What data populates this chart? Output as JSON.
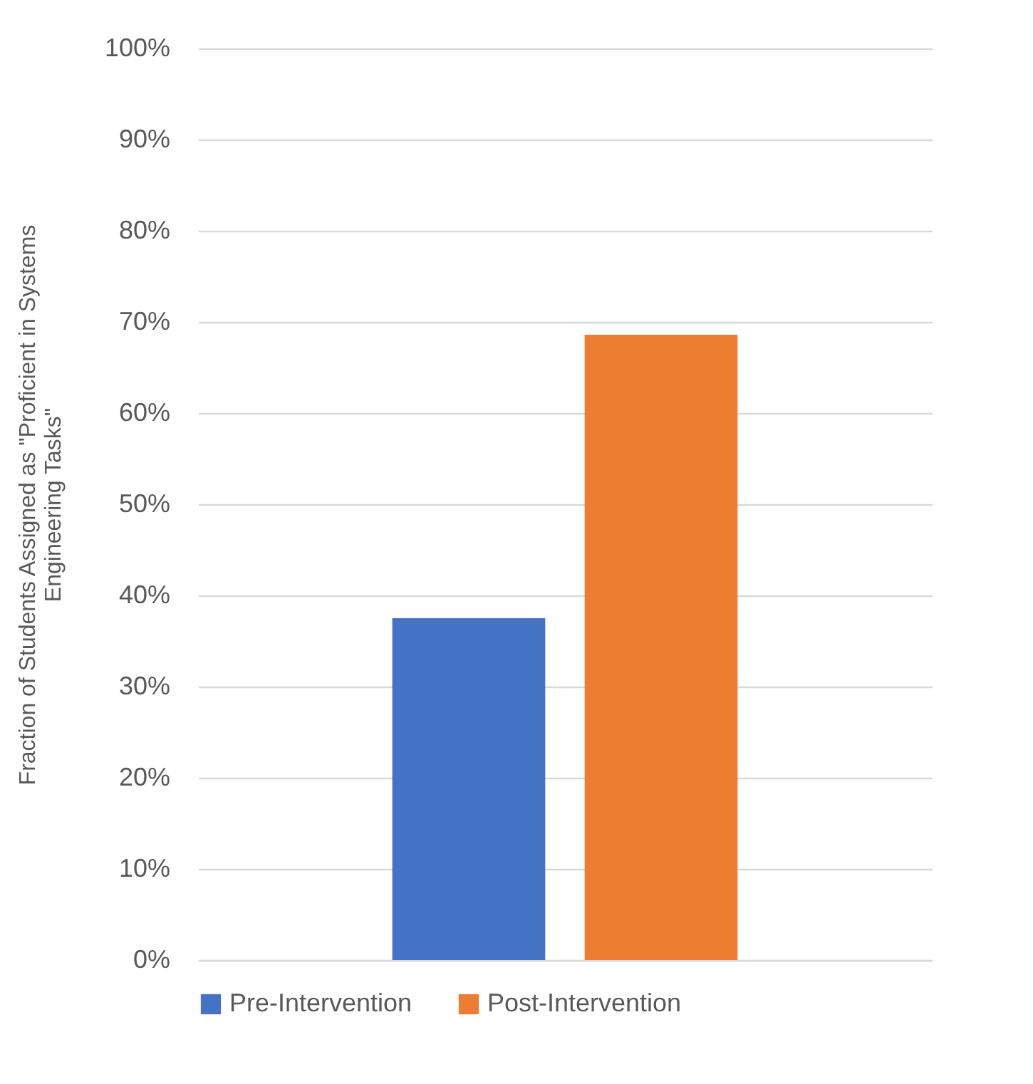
{
  "chart_data": {
    "type": "bar",
    "ylabel": "Fraction of Students Assigned as \"Proficient in Systems Engineering Tasks\"",
    "categories": [
      null
    ],
    "series": [
      {
        "name": "Pre-Intervention",
        "color": "#4472c4",
        "values": [
          37.5
        ]
      },
      {
        "name": "Post-Intervention",
        "color": "#ed7d31",
        "values": [
          68.6
        ]
      }
    ],
    "ylim": [
      0,
      100
    ],
    "yticks": [
      {
        "value": 0,
        "label": "0%"
      },
      {
        "value": 10,
        "label": "10%"
      },
      {
        "value": 20,
        "label": "20%"
      },
      {
        "value": 30,
        "label": "30%"
      },
      {
        "value": 40,
        "label": "40%"
      },
      {
        "value": 50,
        "label": "50%"
      },
      {
        "value": 60,
        "label": "60%"
      },
      {
        "value": 70,
        "label": "70%"
      },
      {
        "value": 80,
        "label": "80%"
      },
      {
        "value": 90,
        "label": "90%"
      },
      {
        "value": 100,
        "label": "100%"
      }
    ],
    "grid": "y",
    "legend": "bottom"
  }
}
